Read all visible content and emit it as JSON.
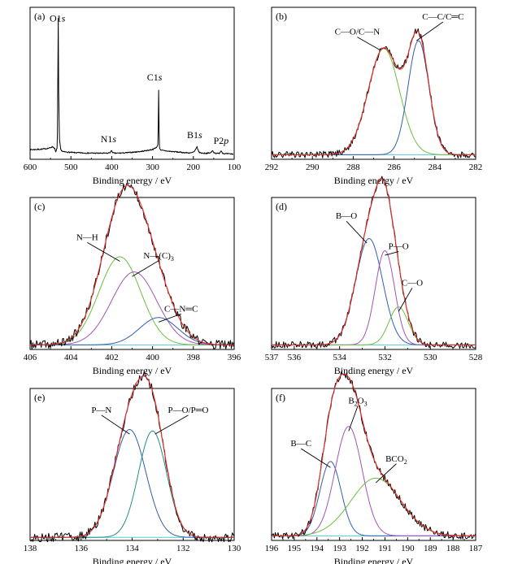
{
  "colors": {
    "raw": "#000000",
    "envelope": "#e8312a",
    "blue": "#2e5fae",
    "green": "#6cbf3e",
    "purple": "#a553b5",
    "teal": "#1f8f86",
    "background": "#5bc6d6"
  },
  "chart_data": [
    {
      "id": "a",
      "panel_label": "(a)",
      "type": "line",
      "title": "",
      "xlabel": "Binding energy / eV",
      "ylabel": "",
      "xlim": [
        600,
        100
      ],
      "x_reversed": true,
      "xticks": [
        600,
        500,
        400,
        300,
        200,
        100
      ],
      "series": [
        {
          "role": "raw",
          "color": "#000000",
          "x": [
            600,
            585,
            570,
            560,
            552,
            545,
            540,
            537,
            534,
            533,
            532,
            531,
            530,
            528,
            525,
            520,
            505,
            490,
            470,
            450,
            430,
            410,
            403,
            400,
            398,
            395,
            380,
            365,
            345,
            325,
            305,
            298,
            292,
            289,
            287,
            286,
            285,
            284,
            283,
            282,
            279,
            275,
            260,
            240,
            220,
            205,
            198,
            193,
            191,
            189,
            186,
            180,
            170,
            160,
            155,
            153,
            150,
            146,
            140,
            137,
            134,
            132,
            130,
            128,
            125,
            110,
            102
          ],
          "y": [
            6.8,
            7.0,
            7.2,
            7.6,
            8.0,
            9.0,
            7.8,
            5.0,
            8,
            18,
            60,
            100,
            48,
            14,
            7.0,
            5.4,
            5.0,
            4.7,
            4.5,
            4.4,
            4.3,
            4.3,
            5.0,
            6.3,
            5.0,
            4.3,
            4.4,
            4.6,
            5.1,
            5.7,
            6.7,
            7.2,
            8.2,
            9,
            10,
            24,
            49,
            22,
            9.2,
            7.3,
            6.6,
            6.2,
            5.7,
            5.2,
            4.7,
            4.5,
            5.4,
            7.5,
            9.0,
            7,
            5.0,
            4.4,
            4.3,
            4.4,
            5.2,
            6.2,
            5.0,
            4.3,
            4.1,
            4.3,
            5.2,
            6.2,
            5.2,
            4.4,
            4.0,
            3.8,
            3.7
          ]
        }
      ],
      "annotations": [
        {
          "text": "O1s",
          "x": 533,
          "y": 98
        },
        {
          "text": "N1s",
          "x": 408,
          "y": 12
        },
        {
          "text": "C1s",
          "x": 295,
          "y": 56
        },
        {
          "text": "B1s",
          "x": 197,
          "y": 15
        },
        {
          "text": "P2p",
          "x": 132,
          "y": 11
        }
      ]
    },
    {
      "id": "b",
      "panel_label": "(b)",
      "type": "line",
      "title": "",
      "xlabel": "Binding energy / eV",
      "ylabel": "",
      "xlim": [
        292,
        282
      ],
      "x_reversed": true,
      "xticks": [
        292,
        290,
        288,
        286,
        284,
        282
      ],
      "peaks": [
        {
          "label": "C—O/C—N",
          "center": 286.5,
          "height": 70,
          "fwhm": 1.8,
          "color": "#6cbf3e",
          "arrow_to": [
            286.7,
            72
          ]
        },
        {
          "label": "C—C/C═C",
          "center": 284.8,
          "height": 75,
          "fwhm": 1.2,
          "color": "#2e5fae",
          "arrow_to": [
            284.9,
            78
          ]
        }
      ],
      "background": 3,
      "label_positions": [
        {
          "text": "C—O/C—N",
          "x": 287.8,
          "y": 82
        },
        {
          "text": "C—C/C═C",
          "x": 283.6,
          "y": 92
        }
      ],
      "ylim": [
        0,
        100
      ]
    },
    {
      "id": "c",
      "panel_label": "(c)",
      "type": "line",
      "title": "",
      "xlabel": "Binding energy / eV",
      "ylabel": "",
      "xlim": [
        406,
        396
      ],
      "x_reversed": true,
      "xticks": [
        406,
        404,
        402,
        400,
        398,
        396
      ],
      "peaks": [
        {
          "label": "N—H",
          "center": 401.6,
          "height": 58,
          "fwhm": 2.4,
          "color": "#6cbf3e",
          "arrow_to": [
            401.6,
            58
          ]
        },
        {
          "label": "N—(C)3",
          "center": 400.9,
          "height": 48,
          "fwhm": 2.6,
          "color": "#a553b5",
          "arrow_to": [
            401.0,
            48
          ]
        },
        {
          "label": "C—N═C",
          "center": 399.7,
          "height": 18,
          "fwhm": 2.2,
          "color": "#2e5fae",
          "arrow_to": [
            399.7,
            18
          ]
        }
      ],
      "background": 3,
      "label_positions": [
        {
          "text": "N—H",
          "x": 403.2,
          "y": 72
        },
        {
          "text": "N—(C)",
          "sub": "3",
          "x": 399.7,
          "y": 60
        },
        {
          "text": "C—N═C",
          "x": 398.6,
          "y": 25
        }
      ],
      "ylim": [
        0,
        100
      ]
    },
    {
      "id": "d",
      "panel_label": "(d)",
      "type": "line",
      "title": "",
      "xlabel": "Binding energy / eV",
      "ylabel": "",
      "xlim": [
        537,
        528
      ],
      "x_reversed": true,
      "xticks": [
        537,
        536,
        534,
        532,
        530,
        528
      ],
      "peaks": [
        {
          "label": "B—O",
          "center": 532.7,
          "height": 70,
          "fwhm": 1.4,
          "color": "#2e5fae",
          "arrow_to": [
            532.8,
            70
          ]
        },
        {
          "label": "P—O",
          "center": 532.0,
          "height": 62,
          "fwhm": 1.0,
          "color": "#a553b5",
          "arrow_to": [
            532.0,
            62
          ]
        },
        {
          "label": "C—O",
          "center": 531.4,
          "height": 25,
          "fwhm": 1.0,
          "color": "#6cbf3e",
          "arrow_to": [
            531.4,
            25
          ]
        }
      ],
      "background": 3,
      "label_positions": [
        {
          "text": "B—O",
          "x": 533.7,
          "y": 86
        },
        {
          "text": "P—O",
          "x": 531.4,
          "y": 66
        },
        {
          "text": "C—O",
          "x": 530.8,
          "y": 42
        }
      ],
      "ylim": [
        0,
        100
      ]
    },
    {
      "id": "e",
      "panel_label": "(e)",
      "type": "line",
      "title": "",
      "xlabel": "Binding energy / eV",
      "ylabel": "",
      "xlim": [
        138,
        130
      ],
      "x_reversed": true,
      "xticks": [
        138,
        136,
        134,
        132,
        130
      ],
      "peaks": [
        {
          "label": "P—N",
          "center": 134.1,
          "height": 71,
          "fwhm": 1.5,
          "color": "#2e5fae",
          "arrow_to": [
            134.1,
            70
          ]
        },
        {
          "label": "P—O/P═O",
          "center": 133.2,
          "height": 70,
          "fwhm": 1.3,
          "color": "#1f8f86",
          "arrow_to": [
            133.1,
            70
          ]
        }
      ],
      "background": 2,
      "label_positions": [
        {
          "text": "P—N",
          "x": 135.2,
          "y": 84
        },
        {
          "text": "P—O/P═O",
          "x": 131.8,
          "y": 84
        }
      ],
      "ylim": [
        0,
        100
      ]
    },
    {
      "id": "f",
      "panel_label": "(f)",
      "type": "line",
      "title": "",
      "xlabel": "Binding energy / eV",
      "ylabel": "",
      "xlim": [
        196,
        187
      ],
      "x_reversed": true,
      "xticks": [
        196,
        195,
        194,
        193,
        192,
        191,
        190,
        189,
        188,
        187
      ],
      "peaks": [
        {
          "label": "B—C",
          "center": 193.4,
          "height": 49,
          "fwhm": 1.1,
          "color": "#2e5fae",
          "arrow_to": [
            193.4,
            48
          ]
        },
        {
          "label": "B2O3",
          "center": 192.6,
          "height": 72,
          "fwhm": 1.4,
          "color": "#a553b5",
          "arrow_to": [
            192.6,
            72
          ]
        },
        {
          "label": "BCO2",
          "center": 191.4,
          "height": 38,
          "fwhm": 2.6,
          "color": "#6cbf3e",
          "arrow_to": [
            191.4,
            38
          ]
        }
      ],
      "background": 3,
      "label_positions": [
        {
          "text": "B—C",
          "x": 194.7,
          "y": 62
        },
        {
          "text": "B",
          "sub": "2",
          "after": "O",
          "sub2": "3",
          "x": 192.2,
          "y": 90
        },
        {
          "text": "BCO",
          "sub": "2",
          "x": 190.5,
          "y": 52
        }
      ],
      "ylim": [
        0,
        100
      ]
    }
  ]
}
